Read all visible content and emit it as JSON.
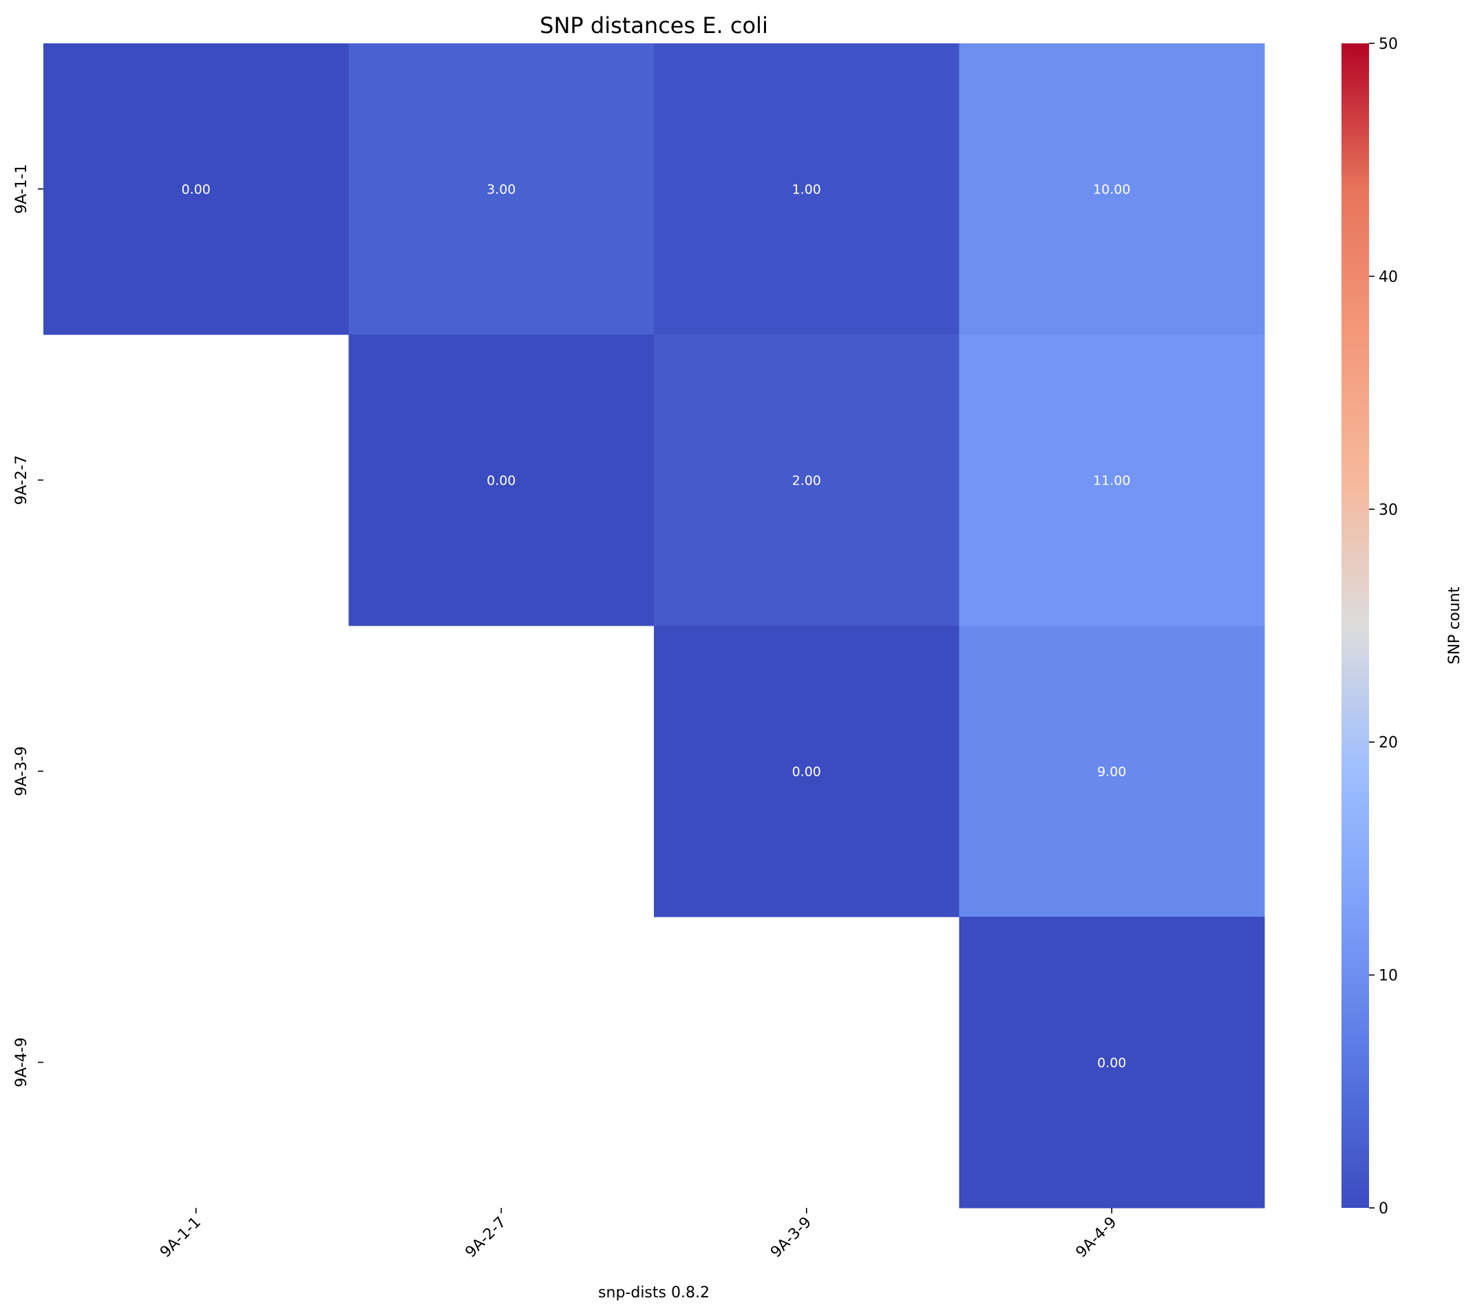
{
  "chart_data": {
    "type": "heatmap",
    "title": "SNP distances E. coli",
    "xlabel": "snp-dists 0.8.2",
    "ylabel": "",
    "x_categories": [
      "9A-1-1",
      "9A-2-7",
      "9A-3-9",
      "9A-4-9"
    ],
    "y_categories": [
      "9A-1-1",
      "9A-2-7",
      "9A-3-9",
      "9A-4-9"
    ],
    "matrix": [
      [
        0,
        3,
        1,
        10
      ],
      [
        null,
        0,
        2,
        11
      ],
      [
        null,
        null,
        0,
        9
      ],
      [
        null,
        null,
        null,
        0
      ]
    ],
    "cell_labels": [
      [
        "0.00",
        "3.00",
        "1.00",
        "10.00"
      ],
      [
        null,
        "0.00",
        "2.00",
        "11.00"
      ],
      [
        null,
        null,
        "0.00",
        "9.00"
      ],
      [
        null,
        null,
        null,
        "0.00"
      ]
    ],
    "colormap": "coolwarm",
    "colorbar": {
      "label": "SNP count",
      "range": [
        0,
        50
      ],
      "ticks": [
        0,
        10,
        20,
        30,
        40,
        50
      ],
      "tick_labels": [
        "0",
        "10",
        "20",
        "30",
        "40",
        "50"
      ]
    },
    "mask": "lower-triangle",
    "grid": false
  }
}
